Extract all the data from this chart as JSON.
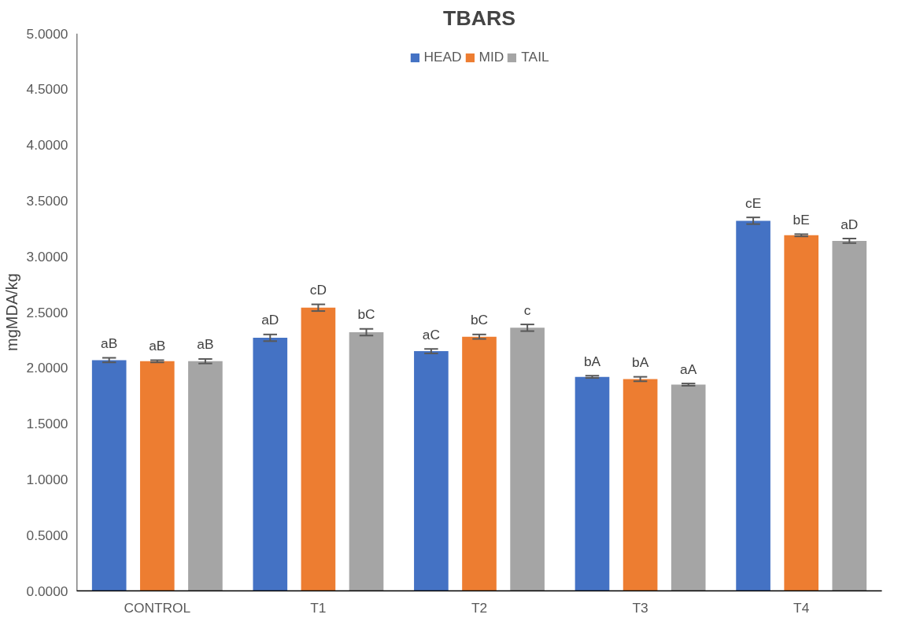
{
  "chart_data": {
    "type": "bar",
    "title": "TBARS",
    "ylabel": "mgMDA/kg",
    "categories": [
      "CONTROL",
      "T1",
      "T2",
      "T3",
      "T4"
    ],
    "series": [
      {
        "name": "HEAD",
        "color": "#4472c4",
        "values": [
          2.07,
          2.27,
          2.15,
          1.92,
          3.32
        ],
        "errors": [
          0.02,
          0.03,
          0.02,
          0.01,
          0.03
        ],
        "value_labels": [
          "aB",
          "aD",
          "aC",
          "bA",
          "cE"
        ]
      },
      {
        "name": "MID",
        "color": "#ed7d31",
        "values": [
          2.06,
          2.54,
          2.28,
          1.9,
          3.19
        ],
        "errors": [
          0.01,
          0.03,
          0.02,
          0.02,
          0.01
        ],
        "value_labels": [
          "aB",
          "cD",
          "bC",
          "bA",
          "bE"
        ]
      },
      {
        "name": "TAIL",
        "color": "#a5a5a5",
        "values": [
          2.06,
          2.32,
          2.36,
          1.85,
          3.14
        ],
        "errors": [
          0.02,
          0.03,
          0.03,
          0.01,
          0.02
        ],
        "value_labels": [
          "aB",
          "bC",
          "c",
          "aA",
          "aD"
        ]
      }
    ],
    "ylim": [
      0,
      5
    ],
    "yticks": [
      {
        "value": 0,
        "label": "0.0000"
      },
      {
        "value": 0.5,
        "label": "0.5000"
      },
      {
        "value": 1,
        "label": "1.0000"
      },
      {
        "value": 1.5,
        "label": "1.5000"
      },
      {
        "value": 2,
        "label": "2.0000"
      },
      {
        "value": 2.5,
        "label": "2.5000"
      },
      {
        "value": 3,
        "label": "3.0000"
      },
      {
        "value": 3.5,
        "label": "3.5000"
      },
      {
        "value": 4,
        "label": "4.0000"
      },
      {
        "value": 4.5,
        "label": "4.5000"
      },
      {
        "value": 5,
        "label": "5.0000"
      }
    ],
    "legend": "top"
  }
}
